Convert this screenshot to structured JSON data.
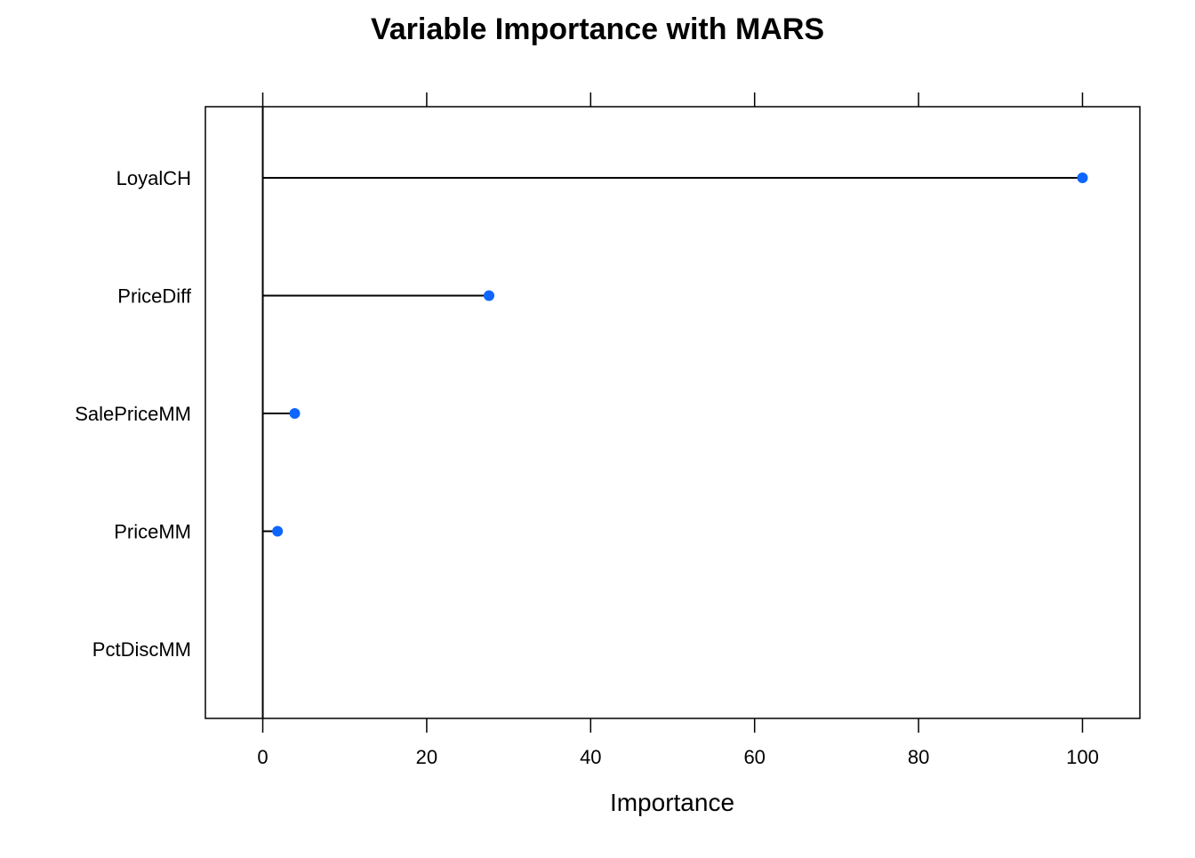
{
  "chart_data": {
    "type": "dotplot",
    "title": "Variable Importance with MARS",
    "xlabel": "Importance",
    "ylabel": "",
    "xlim": [
      -7,
      107
    ],
    "xticks": [
      0,
      20,
      40,
      60,
      80,
      100
    ],
    "categories": [
      "LoyalCH",
      "PriceDiff",
      "SalePriceMM",
      "PriceMM",
      "PctDiscMM"
    ],
    "values": [
      100,
      27.6,
      3.9,
      1.8,
      0
    ],
    "grid": false,
    "legend": "none",
    "point_color": "#0F66FF",
    "line_color": "#000000"
  }
}
